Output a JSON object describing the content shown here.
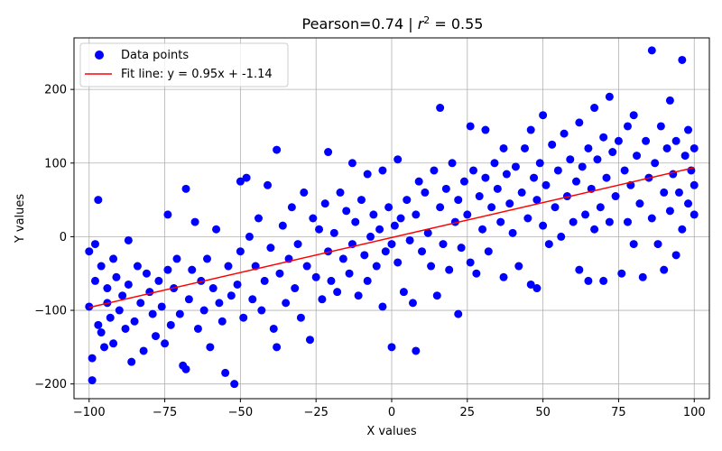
{
  "chart_data": {
    "type": "scatter",
    "title": "Pearson=0.74 | r² = 0.55",
    "title_main": "Pearson=0.74 | ",
    "title_r": "r",
    "title_exp": "2",
    "title_rest": " = 0.55",
    "xlabel": "X values",
    "ylabel": "Y values",
    "xlim": [
      -105,
      105
    ],
    "ylim": [
      -220,
      270
    ],
    "xticks": [
      -100,
      -75,
      -50,
      -25,
      0,
      25,
      50,
      75,
      100
    ],
    "yticks": [
      -200,
      -100,
      0,
      100,
      200
    ],
    "xtick_labels": [
      "−100",
      "−75",
      "−50",
      "−25",
      "0",
      "25",
      "50",
      "75",
      "100"
    ],
    "ytick_labels": [
      "−200",
      "−100",
      "0",
      "100",
      "200"
    ],
    "grid": true,
    "legend_position": "top-left",
    "point_color": "#0000ff",
    "line_color": "#ff0000",
    "legend": {
      "points_label": "Data points",
      "line_label": "Fit line: y = 0.95x + -1.14"
    },
    "fit": {
      "slope": 0.95,
      "intercept": -1.14,
      "x_range": [
        -100,
        100
      ]
    },
    "series": [
      {
        "name": "Data points",
        "points": [
          [
            -100,
            -20
          ],
          [
            -100,
            -95
          ],
          [
            -99,
            -165
          ],
          [
            -99,
            -195
          ],
          [
            -98,
            -10
          ],
          [
            -98,
            -60
          ],
          [
            -97,
            50
          ],
          [
            -97,
            -120
          ],
          [
            -96,
            -40
          ],
          [
            -96,
            -130
          ],
          [
            -95,
            -150
          ],
          [
            -94,
            -90
          ],
          [
            -94,
            -70
          ],
          [
            -93,
            -110
          ],
          [
            -92,
            -30
          ],
          [
            -92,
            -145
          ],
          [
            -91,
            -55
          ],
          [
            -90,
            -100
          ],
          [
            -89,
            -80
          ],
          [
            -88,
            -125
          ],
          [
            -87,
            -5
          ],
          [
            -87,
            -65
          ],
          [
            -86,
            -170
          ],
          [
            -85,
            -115
          ],
          [
            -84,
            -40
          ],
          [
            -83,
            -90
          ],
          [
            -82,
            -155
          ],
          [
            -81,
            -50
          ],
          [
            -80,
            -75
          ],
          [
            -79,
            -105
          ],
          [
            -78,
            -135
          ],
          [
            -77,
            -60
          ],
          [
            -76,
            -95
          ],
          [
            -75,
            -145
          ],
          [
            -74,
            30
          ],
          [
            -74,
            -45
          ],
          [
            -73,
            -120
          ],
          [
            -72,
            -70
          ],
          [
            -71,
            -30
          ],
          [
            -70,
            -105
          ],
          [
            -69,
            -175
          ],
          [
            -68,
            65
          ],
          [
            -68,
            -180
          ],
          [
            -67,
            -85
          ],
          [
            -66,
            -45
          ],
          [
            -65,
            20
          ],
          [
            -64,
            -125
          ],
          [
            -63,
            -60
          ],
          [
            -62,
            -100
          ],
          [
            -61,
            -30
          ],
          [
            -60,
            -150
          ],
          [
            -59,
            -70
          ],
          [
            -58,
            10
          ],
          [
            -57,
            -90
          ],
          [
            -56,
            -115
          ],
          [
            -55,
            -185
          ],
          [
            -54,
            -40
          ],
          [
            -53,
            -80
          ],
          [
            -52,
            -200
          ],
          [
            -51,
            -65
          ],
          [
            -50,
            75
          ],
          [
            -50,
            -20
          ],
          [
            -49,
            -110
          ],
          [
            -48,
            80
          ],
          [
            -47,
            0
          ],
          [
            -46,
            -85
          ],
          [
            -45,
            -40
          ],
          [
            -44,
            25
          ],
          [
            -43,
            -100
          ],
          [
            -42,
            -60
          ],
          [
            -41,
            70
          ],
          [
            -40,
            -15
          ],
          [
            -39,
            -125
          ],
          [
            -38,
            118
          ],
          [
            -38,
            -150
          ],
          [
            -37,
            -50
          ],
          [
            -36,
            15
          ],
          [
            -35,
            -90
          ],
          [
            -34,
            -30
          ],
          [
            -33,
            40
          ],
          [
            -32,
            -70
          ],
          [
            -31,
            -10
          ],
          [
            -30,
            -110
          ],
          [
            -29,
            60
          ],
          [
            -28,
            -40
          ],
          [
            -27,
            -140
          ],
          [
            -26,
            25
          ],
          [
            -25,
            -55
          ],
          [
            -24,
            10
          ],
          [
            -23,
            -85
          ],
          [
            -22,
            45
          ],
          [
            -21,
            115
          ],
          [
            -21,
            -20
          ],
          [
            -20,
            -60
          ],
          [
            -19,
            5
          ],
          [
            -18,
            -75
          ],
          [
            -17,
            60
          ],
          [
            -16,
            -30
          ],
          [
            -15,
            35
          ],
          [
            -14,
            -50
          ],
          [
            -13,
            100
          ],
          [
            -13,
            -10
          ],
          [
            -12,
            20
          ],
          [
            -11,
            -80
          ],
          [
            -10,
            50
          ],
          [
            -9,
            -25
          ],
          [
            -8,
            85
          ],
          [
            -8,
            -60
          ],
          [
            -7,
            0
          ],
          [
            -6,
            30
          ],
          [
            -5,
            -40
          ],
          [
            -4,
            10
          ],
          [
            -3,
            90
          ],
          [
            -3,
            -95
          ],
          [
            -2,
            -20
          ],
          [
            -1,
            40
          ],
          [
            0,
            -150
          ],
          [
            0,
            -10
          ],
          [
            1,
            15
          ],
          [
            2,
            105
          ],
          [
            2,
            -35
          ],
          [
            3,
            25
          ],
          [
            4,
            -75
          ],
          [
            5,
            50
          ],
          [
            6,
            -5
          ],
          [
            7,
            -90
          ],
          [
            8,
            -155
          ],
          [
            8,
            30
          ],
          [
            9,
            75
          ],
          [
            10,
            -20
          ],
          [
            11,
            60
          ],
          [
            12,
            5
          ],
          [
            13,
            -40
          ],
          [
            14,
            90
          ],
          [
            15,
            -80
          ],
          [
            16,
            175
          ],
          [
            16,
            40
          ],
          [
            17,
            -10
          ],
          [
            18,
            65
          ],
          [
            19,
            -45
          ],
          [
            20,
            100
          ],
          [
            21,
            20
          ],
          [
            22,
            -105
          ],
          [
            22,
            50
          ],
          [
            23,
            -15
          ],
          [
            24,
            75
          ],
          [
            25,
            30
          ],
          [
            26,
            150
          ],
          [
            26,
            -35
          ],
          [
            27,
            90
          ],
          [
            28,
            -50
          ],
          [
            29,
            55
          ],
          [
            30,
            10
          ],
          [
            31,
            145
          ],
          [
            31,
            80
          ],
          [
            32,
            -20
          ],
          [
            33,
            40
          ],
          [
            34,
            100
          ],
          [
            35,
            65
          ],
          [
            36,
            20
          ],
          [
            37,
            -55
          ],
          [
            37,
            120
          ],
          [
            38,
            85
          ],
          [
            39,
            45
          ],
          [
            40,
            5
          ],
          [
            41,
            95
          ],
          [
            42,
            -40
          ],
          [
            43,
            60
          ],
          [
            44,
            120
          ],
          [
            45,
            25
          ],
          [
            46,
            -65
          ],
          [
            46,
            145
          ],
          [
            47,
            80
          ],
          [
            48,
            -70
          ],
          [
            48,
            50
          ],
          [
            49,
            100
          ],
          [
            50,
            165
          ],
          [
            50,
            15
          ],
          [
            51,
            70
          ],
          [
            52,
            -10
          ],
          [
            53,
            125
          ],
          [
            54,
            40
          ],
          [
            55,
            90
          ],
          [
            56,
            0
          ],
          [
            57,
            140
          ],
          [
            58,
            55
          ],
          [
            59,
            105
          ],
          [
            60,
            20
          ],
          [
            61,
            75
          ],
          [
            62,
            -45
          ],
          [
            62,
            155
          ],
          [
            63,
            95
          ],
          [
            64,
            30
          ],
          [
            65,
            -60
          ],
          [
            65,
            120
          ],
          [
            66,
            65
          ],
          [
            67,
            175
          ],
          [
            67,
            10
          ],
          [
            68,
            105
          ],
          [
            69,
            40
          ],
          [
            70,
            -60
          ],
          [
            70,
            135
          ],
          [
            71,
            80
          ],
          [
            72,
            190
          ],
          [
            72,
            20
          ],
          [
            73,
            115
          ],
          [
            74,
            55
          ],
          [
            75,
            130
          ],
          [
            76,
            -50
          ],
          [
            77,
            90
          ],
          [
            78,
            150
          ],
          [
            78,
            20
          ],
          [
            79,
            70
          ],
          [
            80,
            165
          ],
          [
            80,
            -10
          ],
          [
            81,
            110
          ],
          [
            82,
            45
          ],
          [
            83,
            -55
          ],
          [
            84,
            130
          ],
          [
            85,
            80
          ],
          [
            86,
            253
          ],
          [
            86,
            25
          ],
          [
            87,
            100
          ],
          [
            88,
            -10
          ],
          [
            89,
            150
          ],
          [
            90,
            60
          ],
          [
            90,
            -45
          ],
          [
            91,
            120
          ],
          [
            92,
            185
          ],
          [
            92,
            35
          ],
          [
            93,
            85
          ],
          [
            94,
            -25
          ],
          [
            94,
            130
          ],
          [
            95,
            60
          ],
          [
            96,
            240
          ],
          [
            96,
            10
          ],
          [
            97,
            110
          ],
          [
            98,
            145
          ],
          [
            98,
            45
          ],
          [
            99,
            90
          ],
          [
            100,
            70
          ],
          [
            100,
            120
          ],
          [
            100,
            30
          ]
        ]
      }
    ]
  }
}
